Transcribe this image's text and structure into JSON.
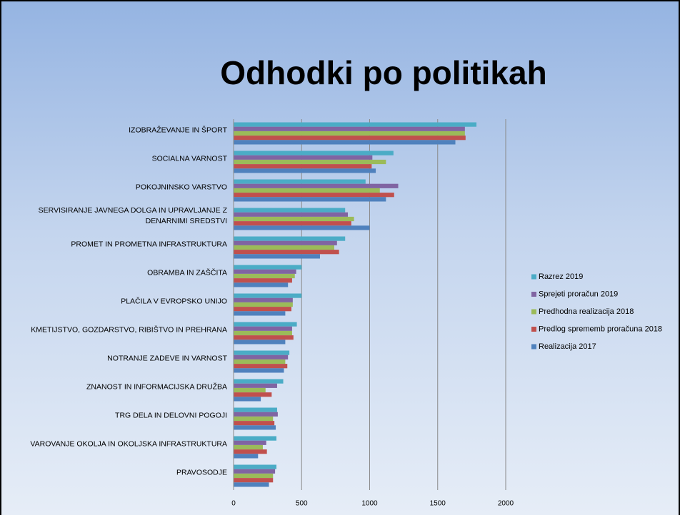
{
  "chart_data": {
    "type": "bar",
    "orientation": "horizontal",
    "title": "Odhodki po politikah",
    "categories": [
      "IZOBRAŽEVANJE IN ŠPORT",
      "SOCIALNA VARNOST",
      "POKOJNINSKO VARSTVO",
      "SERVISIRANJE JAVNEGA DOLGA IN UPRAVLJANJE Z DENARNIMI SREDSTVI",
      "PROMET IN PROMETNA INFRASTRUKTURA",
      "OBRAMBA IN ZAŠČITA",
      "PLAČILA V EVROPSKO UNIJO",
      "KMETIJSTVO, GOZDARSTVO, RIBIŠTVO IN PREHRANA",
      "NOTRANJE ZADEVE IN VARNOST",
      "ZNANOST IN INFORMACIJSKA DRUŽBA",
      "TRG DELA IN DELOVNI POGOJI",
      "VAROVANJE OKOLJA IN OKOLJSKA INFRASTRUKTURA",
      "PRAVOSODJE"
    ],
    "series": [
      {
        "name": "Razrez 2019",
        "color": "#4bacc6",
        "values": [
          1785,
          1175,
          970,
          820,
          820,
          500,
          500,
          465,
          410,
          365,
          320,
          315,
          315
        ]
      },
      {
        "name": "Sprejeti proračun 2019",
        "color": "#8064a2",
        "values": [
          1700,
          1020,
          1210,
          840,
          760,
          460,
          435,
          430,
          400,
          320,
          325,
          240,
          305
        ]
      },
      {
        "name": "Predhodna realizacija 2018",
        "color": "#9bbb59",
        "values": [
          1700,
          1120,
          1075,
          885,
          740,
          450,
          435,
          430,
          380,
          235,
          290,
          215,
          290
        ]
      },
      {
        "name": "Predlog sprememb proračuna 2018",
        "color": "#c0504d",
        "values": [
          1705,
          1015,
          1180,
          865,
          775,
          430,
          425,
          440,
          395,
          280,
          300,
          245,
          290
        ]
      },
      {
        "name": "Realizacija 2017",
        "color": "#4f81bd",
        "values": [
          1630,
          1045,
          1120,
          1000,
          635,
          400,
          380,
          380,
          370,
          200,
          310,
          180,
          260
        ]
      }
    ],
    "xlim": [
      0,
      2000
    ],
    "xticks": [
      0,
      500,
      1000,
      1500,
      2000
    ],
    "grid": true,
    "legend": "right"
  }
}
